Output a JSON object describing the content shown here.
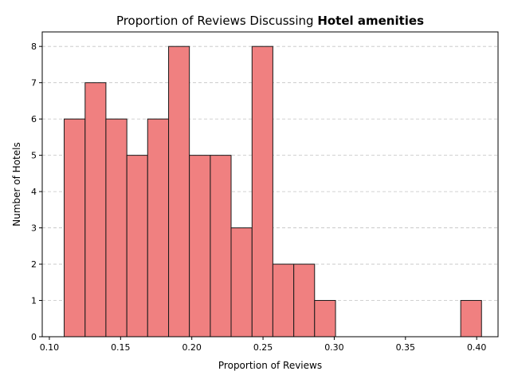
{
  "chart_data": {
    "type": "bar",
    "title_prefix": "Proportion of Reviews Discussing ",
    "title_bold": "Hotel amenities",
    "xlabel": "Proportion of Reviews",
    "ylabel": "Number of Hotels",
    "bar_color": "#f08080",
    "edge_color": "#1a1a1a",
    "grid": "y-dashed",
    "xlim": [
      0.095,
      0.415
    ],
    "ylim": [
      0,
      8.4
    ],
    "xticks": [
      0.1,
      0.15,
      0.2,
      0.25,
      0.3,
      0.35,
      0.4
    ],
    "xtick_labels": [
      "0.10",
      "0.15",
      "0.20",
      "0.25",
      "0.30",
      "0.35",
      "0.40"
    ],
    "yticks": [
      0,
      1,
      2,
      3,
      4,
      5,
      6,
      7,
      8
    ],
    "ytick_labels": [
      "0",
      "1",
      "2",
      "3",
      "4",
      "5",
      "6",
      "7",
      "8"
    ],
    "bins": [
      {
        "x0": 0.1104,
        "x1": 0.1251,
        "count": 6
      },
      {
        "x0": 0.1251,
        "x1": 0.1397,
        "count": 7
      },
      {
        "x0": 0.1397,
        "x1": 0.1544,
        "count": 6
      },
      {
        "x0": 0.1544,
        "x1": 0.169,
        "count": 5
      },
      {
        "x0": 0.169,
        "x1": 0.1837,
        "count": 6
      },
      {
        "x0": 0.1837,
        "x1": 0.1983,
        "count": 8
      },
      {
        "x0": 0.1983,
        "x1": 0.213,
        "count": 5
      },
      {
        "x0": 0.213,
        "x1": 0.2276,
        "count": 5
      },
      {
        "x0": 0.2276,
        "x1": 0.2423,
        "count": 3
      },
      {
        "x0": 0.2423,
        "x1": 0.2569,
        "count": 8
      },
      {
        "x0": 0.2569,
        "x1": 0.2716,
        "count": 2
      },
      {
        "x0": 0.2716,
        "x1": 0.2862,
        "count": 2
      },
      {
        "x0": 0.2862,
        "x1": 0.3009,
        "count": 1
      },
      {
        "x0": 0.3009,
        "x1": 0.3155,
        "count": 0
      },
      {
        "x0": 0.3155,
        "x1": 0.3302,
        "count": 0
      },
      {
        "x0": 0.3302,
        "x1": 0.3448,
        "count": 0
      },
      {
        "x0": 0.3448,
        "x1": 0.3595,
        "count": 0
      },
      {
        "x0": 0.3595,
        "x1": 0.3741,
        "count": 0
      },
      {
        "x0": 0.3741,
        "x1": 0.3888,
        "count": 0
      },
      {
        "x0": 0.3888,
        "x1": 0.4034,
        "count": 1
      }
    ]
  }
}
